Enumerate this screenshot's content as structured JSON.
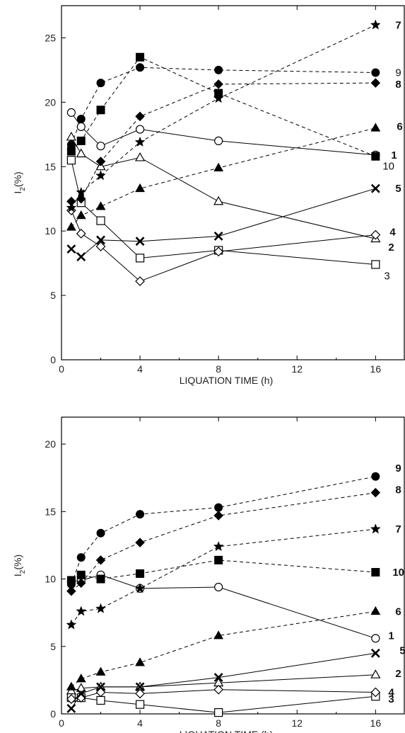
{
  "chart_data": [
    {
      "type": "line",
      "xlabel": "LIQUATION TIME (h)",
      "ylabel_main": "I",
      "ylabel_sub": "2",
      "ylabel_tail": "(%)",
      "xlim": [
        0,
        17.5
      ],
      "ylim": [
        0,
        27.5
      ],
      "xticks": [
        "0",
        "4",
        "8",
        "12",
        "16"
      ],
      "yticks": [
        "0",
        "5",
        "10",
        "15",
        "20",
        "25"
      ],
      "series": [
        {
          "name": "1",
          "marker": "circle-open",
          "line": "solid",
          "label_bold": true,
          "x": [
            0.5,
            1,
            2,
            4,
            8,
            16
          ],
          "y": [
            19.2,
            18.1,
            16.6,
            17.9,
            17.0,
            15.9
          ]
        },
        {
          "name": "2",
          "marker": "triangle-open",
          "line": "solid",
          "label_bold": true,
          "x": [
            0.5,
            1,
            2,
            4,
            8,
            16
          ],
          "y": [
            17.3,
            16.0,
            15.0,
            15.7,
            12.3,
            9.4
          ]
        },
        {
          "name": "3",
          "marker": "square-open",
          "line": "solid",
          "label_bold": false,
          "x": [
            0.5,
            1,
            2,
            4,
            8,
            16
          ],
          "y": [
            15.5,
            12.2,
            10.8,
            7.9,
            8.5,
            7.4
          ]
        },
        {
          "name": "4",
          "marker": "diamond-open",
          "line": "solid",
          "label_bold": true,
          "x": [
            0.5,
            1,
            2,
            4,
            8,
            16
          ],
          "y": [
            11.6,
            9.8,
            8.8,
            6.1,
            8.4,
            9.7
          ]
        },
        {
          "name": "5",
          "marker": "cross",
          "line": "solid",
          "label_bold": true,
          "x": [
            0.5,
            1,
            2,
            4,
            8,
            16
          ],
          "y": [
            8.6,
            8.0,
            9.3,
            9.2,
            9.6,
            13.3
          ]
        },
        {
          "name": "6",
          "marker": "triangle-filled",
          "line": "dashed",
          "label_bold": true,
          "x": [
            0.5,
            1,
            2,
            4,
            8,
            16
          ],
          "y": [
            10.3,
            11.2,
            11.9,
            13.3,
            14.9,
            18.0
          ]
        },
        {
          "name": "7",
          "marker": "star",
          "line": "dashed",
          "label_bold": true,
          "x": [
            0.5,
            1,
            2,
            4,
            8,
            16
          ],
          "y": [
            11.8,
            13.0,
            14.3,
            16.9,
            20.3,
            26.0
          ]
        },
        {
          "name": "8",
          "marker": "diamond-filled",
          "line": "dashed",
          "label_bold": true,
          "x": [
            0.5,
            1,
            2,
            4,
            8,
            16
          ],
          "y": [
            12.3,
            12.5,
            15.4,
            18.9,
            21.4,
            21.5
          ]
        },
        {
          "name": "9",
          "marker": "circle-filled",
          "line": "dashed",
          "label_bold": false,
          "x": [
            0.5,
            1,
            2,
            4,
            8,
            16
          ],
          "y": [
            16.7,
            18.7,
            21.5,
            22.7,
            22.5,
            22.3
          ]
        },
        {
          "name": "10",
          "marker": "square-filled",
          "line": "dashed",
          "label_bold": false,
          "x": [
            0.5,
            1,
            2,
            4,
            8,
            16
          ],
          "y": [
            16.2,
            17.0,
            19.4,
            23.5,
            20.7,
            15.8
          ]
        }
      ]
    },
    {
      "type": "line",
      "xlabel": "LIQUATION TIME (h)",
      "ylabel_main": "I",
      "ylabel_sub": "2",
      "ylabel_tail": "(%)",
      "xlim": [
        0,
        17.5
      ],
      "ylim": [
        0,
        22
      ],
      "xticks": [
        "0",
        "4",
        "8",
        "12",
        "16"
      ],
      "yticks": [
        "0",
        "5",
        "10",
        "15",
        "20"
      ],
      "series": [
        {
          "name": "1",
          "marker": "circle-open",
          "line": "solid",
          "label_bold": true,
          "x": [
            0.5,
            1,
            2,
            4,
            8,
            16
          ],
          "y": [
            9.8,
            9.9,
            10.3,
            9.3,
            9.4,
            5.6
          ]
        },
        {
          "name": "2",
          "marker": "triangle-open",
          "line": "solid",
          "label_bold": true,
          "x": [
            0.5,
            1,
            2,
            4,
            8,
            16
          ],
          "y": [
            1.7,
            1.9,
            2.0,
            2.0,
            2.3,
            2.9
          ]
        },
        {
          "name": "3",
          "marker": "square-open",
          "line": "solid",
          "label_bold": true,
          "x": [
            0.5,
            1,
            2,
            4,
            8,
            16
          ],
          "y": [
            1.2,
            1.2,
            1.0,
            0.7,
            0.1,
            1.3
          ]
        },
        {
          "name": "4",
          "marker": "diamond-open",
          "line": "solid",
          "label_bold": true,
          "x": [
            0.5,
            1,
            2,
            4,
            8,
            16
          ],
          "y": [
            1.1,
            1.2,
            1.6,
            1.5,
            1.8,
            1.6
          ]
        },
        {
          "name": "5",
          "marker": "cross",
          "line": "solid",
          "label_bold": true,
          "x": [
            0.5,
            1,
            2,
            4,
            8,
            16
          ],
          "y": [
            0.4,
            1.5,
            2.0,
            2.0,
            2.7,
            4.5
          ]
        },
        {
          "name": "6",
          "marker": "triangle-filled",
          "line": "dashed",
          "label_bold": true,
          "x": [
            0.5,
            1,
            2,
            4,
            8,
            16
          ],
          "y": [
            2.0,
            2.6,
            3.1,
            3.8,
            5.8,
            7.6
          ]
        },
        {
          "name": "7",
          "marker": "star",
          "line": "dashed",
          "label_bold": true,
          "x": [
            0.5,
            1,
            2,
            4,
            8,
            16
          ],
          "y": [
            6.6,
            7.6,
            7.8,
            9.3,
            12.4,
            13.7
          ]
        },
        {
          "name": "8",
          "marker": "diamond-filled",
          "line": "dashed",
          "label_bold": true,
          "x": [
            0.5,
            1,
            2,
            4,
            8,
            16
          ],
          "y": [
            9.1,
            9.7,
            11.4,
            12.7,
            14.7,
            16.4
          ]
        },
        {
          "name": "9",
          "marker": "circle-filled",
          "line": "dashed",
          "label_bold": true,
          "x": [
            0.5,
            1,
            2,
            4,
            8,
            16
          ],
          "y": [
            9.6,
            11.6,
            13.4,
            14.8,
            15.3,
            17.6
          ]
        },
        {
          "name": "10",
          "marker": "square-filled",
          "line": "dashed",
          "label_bold": true,
          "x": [
            0.5,
            1,
            2,
            4,
            8,
            16
          ],
          "y": [
            9.9,
            10.3,
            10.0,
            10.4,
            11.4,
            10.5
          ]
        }
      ]
    }
  ]
}
